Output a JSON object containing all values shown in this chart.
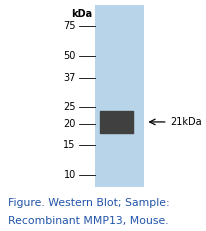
{
  "caption_line1": "Figure. Western Blot; Sample:",
  "caption_line2": "Recombinant MMP13, Mouse.",
  "kda_label": "kDa",
  "marker_positions": [
    75,
    50,
    37,
    25,
    20,
    15,
    10
  ],
  "band_kda": 21,
  "band_label": "← 21kDa",
  "lane_color": "#b8d4e8",
  "lane_edge_color": "#a0bcd4",
  "band_color": "#404040",
  "background_color": "#ffffff",
  "caption_color": "#2255aa",
  "caption_fontsize": 7.8,
  "tick_fontsize": 7.0,
  "kda_fontsize": 7.0,
  "fig_width": 2.06,
  "fig_height": 2.31,
  "dpi": 100,
  "y_min": 8.5,
  "y_max": 100
}
